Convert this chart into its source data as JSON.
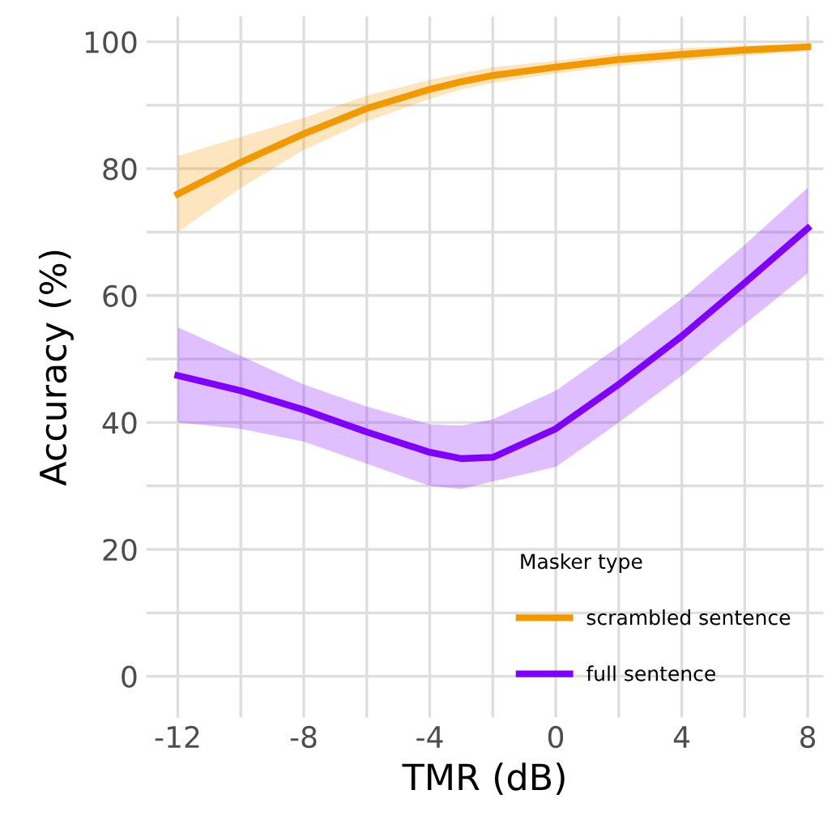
{
  "chart_data": {
    "type": "line",
    "xlabel": "TMR (dB)",
    "ylabel": "Accuracy (%)",
    "legend_title": "Masker type",
    "x": [
      -12,
      -10,
      -8,
      -6,
      -4,
      -3,
      -2,
      0,
      2,
      4,
      6,
      8
    ],
    "series": [
      {
        "name": "scrambled sentence",
        "color": "#f29900",
        "values": [
          76,
          81,
          85.5,
          89.5,
          92.5,
          93.7,
          94.7,
          96,
          97.2,
          98,
          98.7,
          99.2
        ],
        "lower": [
          70,
          77,
          83,
          87.5,
          91,
          92.5,
          93.5,
          95,
          96.2,
          97,
          97.8,
          98.5
        ],
        "upper": [
          82,
          85,
          88,
          91.5,
          94,
          95,
          96,
          97,
          98.2,
          99,
          99.4,
          99.8
        ]
      },
      {
        "name": "full sentence",
        "color": "#8000ff",
        "values": [
          47.4,
          45,
          42,
          38.5,
          35.3,
          34.3,
          34.5,
          39,
          46,
          53.6,
          62,
          70.6
        ],
        "lower": [
          40,
          39,
          37,
          33.5,
          30,
          29.5,
          30.7,
          33,
          40,
          47.4,
          55.5,
          63.5
        ],
        "upper": [
          55,
          50.5,
          46,
          42.5,
          39.7,
          39.5,
          40.5,
          45,
          52,
          59.5,
          68,
          77
        ]
      }
    ],
    "xlim": [
      -13,
      8.5
    ],
    "ylim": [
      -6.5,
      104
    ],
    "xticks": [
      {
        "value": -12,
        "label": "-12"
      },
      {
        "value": -10,
        "label": null
      },
      {
        "value": -8,
        "label": "-8"
      },
      {
        "value": -6,
        "label": null
      },
      {
        "value": -4,
        "label": "-4"
      },
      {
        "value": -2,
        "label": null
      },
      0,
      {
        "value": 2,
        "label": null
      },
      4,
      {
        "value": 6,
        "label": null
      },
      8
    ],
    "yticks": [
      0,
      {
        "value": 10,
        "label": null
      },
      20,
      {
        "value": 30,
        "label": null
      },
      40,
      {
        "value": 50,
        "label": null
      },
      60,
      {
        "value": 70,
        "label": null
      },
      80,
      {
        "value": 90,
        "label": null
      },
      100
    ],
    "grid": true,
    "legend": "bottom right",
    "marker": "none",
    "line_style": "solid"
  }
}
